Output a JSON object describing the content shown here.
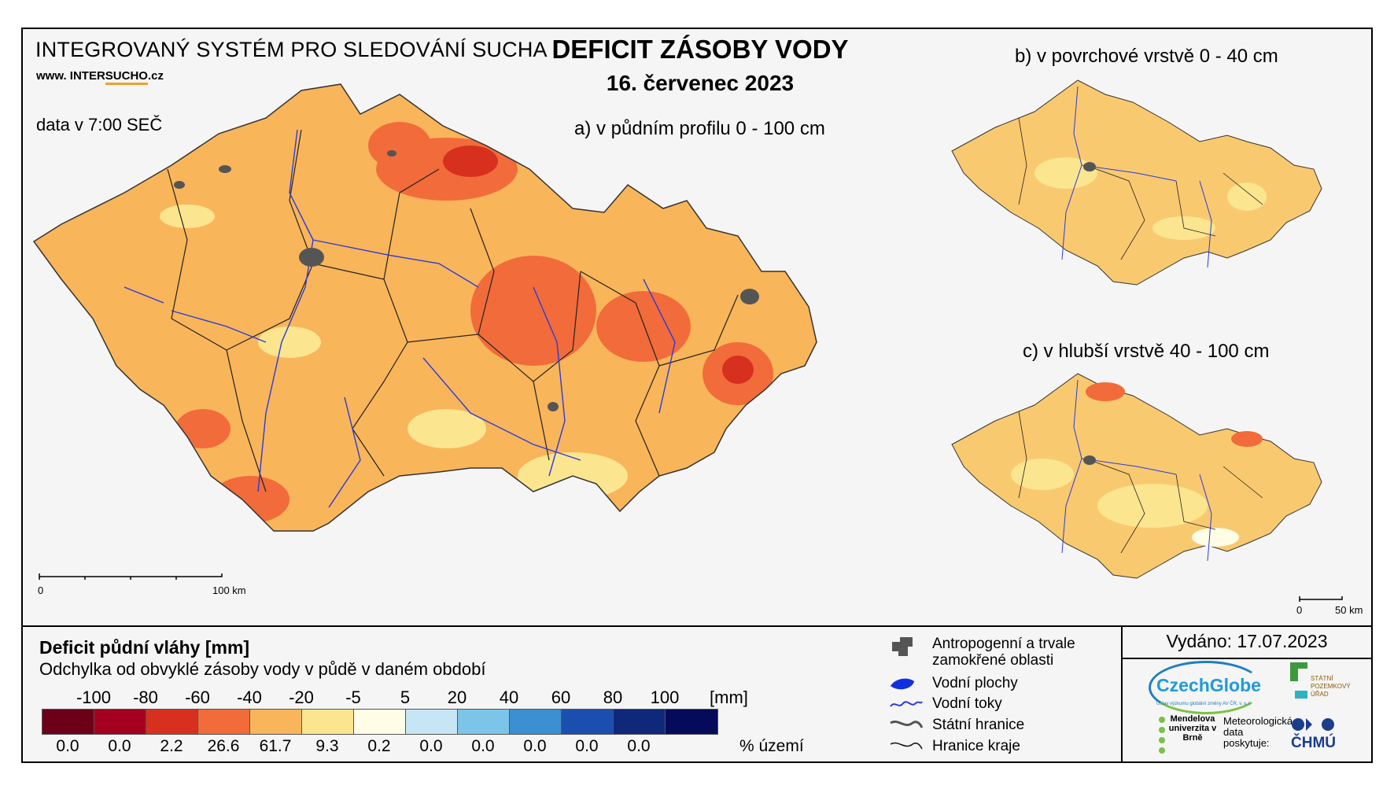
{
  "header": {
    "system_title": "INTEGROVANÝ SYSTÉM PRO SLEDOVÁNÍ SUCHA",
    "url_prefix": "www. INTER",
    "url_highlight": "SUCHO",
    "url_suffix": ".cz",
    "data_time": "data v 7:00 SEČ",
    "main_title": "DEFICIT ZÁSOBY VODY",
    "date": "16. červenec 2023"
  },
  "maps": {
    "a_label": "a) v půdním profilu 0 - 100 cm",
    "b_label": "b) v povrchové vrstvě 0 - 40 cm",
    "c_label": "c) v hlubší vrstvě 40 - 100 cm",
    "scale_a": {
      "start": "0",
      "end": "100 km"
    },
    "scale_bc": {
      "start": "0",
      "end": "50 km"
    }
  },
  "legend": {
    "title": "Deficit půdní vláhy  [mm]",
    "subtitle": "Odchylka od obvyklé zásoby vody v půdě v daném období",
    "ticks": [
      "-100",
      "-80",
      "-60",
      "-40",
      "-20",
      "-5",
      "5",
      "20",
      "40",
      "60",
      "80",
      "100"
    ],
    "unit": "[mm]",
    "colors": [
      "#6b0018",
      "#a5001e",
      "#d7301f",
      "#f26b3a",
      "#f9b55a",
      "#fbe58f",
      "#fffde6",
      "#c6e6f5",
      "#7cc5e8",
      "#3c8fd1",
      "#1a4fb0",
      "#10287a",
      "#050a5a"
    ],
    "percentages": [
      "0.0",
      "0.0",
      "2.2",
      "26.6",
      "61.7",
      "9.3",
      "0.2",
      "0.0",
      "0.0",
      "0.0",
      "0.0",
      "0.0"
    ],
    "percent_unit": "% území"
  },
  "symbols": {
    "urban": "Antropogenní a trvale zamokřené oblasti",
    "water_bodies": "Vodní plochy",
    "rivers": "Vodní toky",
    "state_border": "Státní hranice",
    "region_border": "Hranice kraje"
  },
  "footer": {
    "issued": "Vydáno: 17.07.2023",
    "czechglobe": "CzechGlobe",
    "czechglobe_sub": "Ústav výzkumu globální změny AV ČR, v. v. i.",
    "spu": "STÁTNÍ POZEMKOVÝ ÚŘAD",
    "mendel": "Mendelova univerzita v Brně",
    "meteo": "Meteorologická data poskytuje:",
    "chmu": "ČHMÚ"
  }
}
